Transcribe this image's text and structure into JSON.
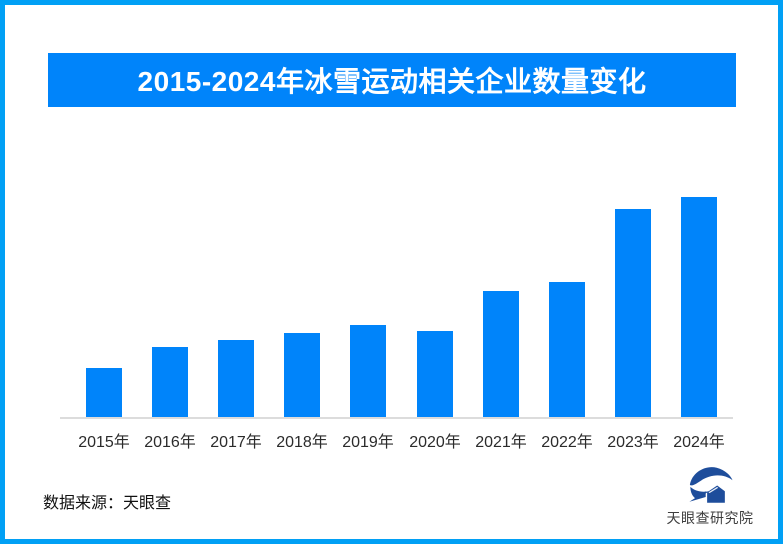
{
  "header": {
    "title": "2015-2024年冰雪运动相关企业数量变化"
  },
  "footer": {
    "source_note": "数据来源：天眼查",
    "brand_name": "天眼查研究院"
  },
  "icons": {
    "brand_logo": "tianyancha-eye-house-logo"
  },
  "colors": {
    "frame_border": "#01A0F5",
    "banner_bg": "#0084FA",
    "bar_fill": "#0084FA",
    "axis_line": "#DCDCDC",
    "title_text": "#FFFFFF",
    "label_text": "#2B2B2B",
    "source_text": "#111111",
    "brand_text": "#3D3D3D",
    "logo_navy": "#1E4D9B"
  },
  "chart_data": {
    "type": "bar",
    "title": "2015-2024年冰雪运动相关企业数量变化",
    "categories": [
      "2015年",
      "2016年",
      "2017年",
      "2018年",
      "2019年",
      "2020年",
      "2021年",
      "2022年",
      "2023年",
      "2024年"
    ],
    "values": [
      49,
      70,
      77,
      84,
      92,
      86,
      126,
      135,
      208,
      220
    ],
    "values_note": "chart shows no y-axis, gridlines or data labels; values are relative bar heights estimated from pixels (max bar = 220)",
    "xlabel": "",
    "ylabel": "",
    "ylim": [
      0,
      240
    ],
    "grid": false,
    "legend": false,
    "bar_color": "#0084FA"
  }
}
